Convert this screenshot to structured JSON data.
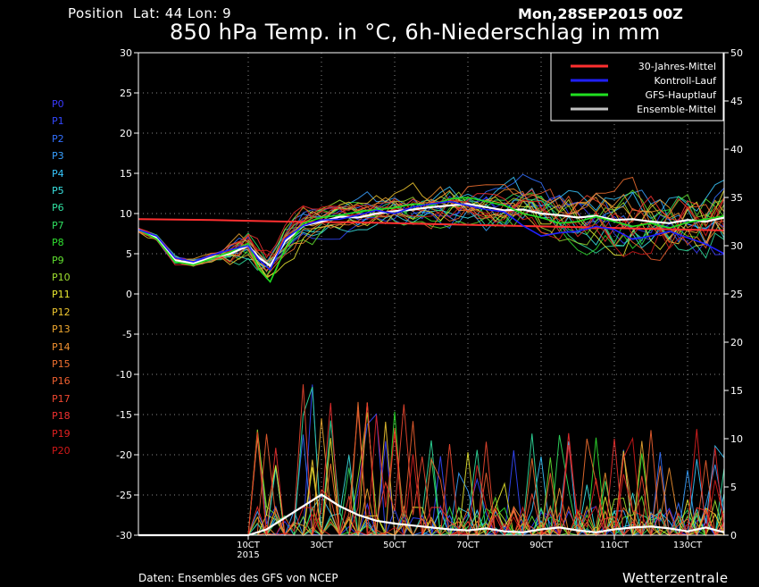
{
  "header": {
    "position": "Position  Lat: 44 Lon: 9",
    "run": "Mon,28SEP2015 00Z",
    "title": "850 hPa Temp. in °C, 6h-Niederschlag in mm"
  },
  "footer": {
    "source": "Daten: Ensembles des GFS von NCEP",
    "brand": "Wetterzentrale"
  },
  "members": [
    {
      "name": "P0",
      "color": "#3a3aff"
    },
    {
      "name": "P1",
      "color": "#3348ff"
    },
    {
      "name": "P2",
      "color": "#3270ff"
    },
    {
      "name": "P3",
      "color": "#38a0ff"
    },
    {
      "name": "P4",
      "color": "#38c8ff"
    },
    {
      "name": "P5",
      "color": "#38e0e0"
    },
    {
      "name": "P6",
      "color": "#30e0a0"
    },
    {
      "name": "P7",
      "color": "#30e060"
    },
    {
      "name": "P8",
      "color": "#30e030"
    },
    {
      "name": "P9",
      "color": "#60e030"
    },
    {
      "name": "P10",
      "color": "#a0e030"
    },
    {
      "name": "P11",
      "color": "#e8e830"
    },
    {
      "name": "P12",
      "color": "#f0c830"
    },
    {
      "name": "P13",
      "color": "#f0a830"
    },
    {
      "name": "P14",
      "color": "#f09030"
    },
    {
      "name": "P15",
      "color": "#f07030"
    },
    {
      "name": "P16",
      "color": "#f06030"
    },
    {
      "name": "P17",
      "color": "#f04830"
    },
    {
      "name": "P18",
      "color": "#f03030"
    },
    {
      "name": "P19",
      "color": "#e02020"
    },
    {
      "name": "P20",
      "color": "#d01818"
    }
  ],
  "chart_data": {
    "type": "line",
    "x_ticks": [
      {
        "label": "10CT",
        "sub": "2015",
        "day": 3.0
      },
      {
        "label": "30CT",
        "sub": "",
        "day": 5.0
      },
      {
        "label": "50CT",
        "sub": "",
        "day": 7.0
      },
      {
        "label": "70CT",
        "sub": "",
        "day": 9.0
      },
      {
        "label": "90CT",
        "sub": "",
        "day": 11.0
      },
      {
        "label": "110CT",
        "sub": "",
        "day": 13.0
      },
      {
        "label": "130CT",
        "sub": "",
        "day": 15.0
      }
    ],
    "xlim": [
      0,
      16
    ],
    "ylim_left": [
      -30,
      30
    ],
    "yticks_left": [
      -30,
      -25,
      -20,
      -15,
      -10,
      -5,
      0,
      5,
      10,
      15,
      20,
      25,
      30
    ],
    "ylim_right": [
      0,
      50
    ],
    "yticks_right": [
      0,
      5,
      10,
      15,
      20,
      25,
      30,
      35,
      40,
      45,
      50
    ],
    "grid": true,
    "legend_position": "top-right",
    "legend": [
      {
        "label": "30-Jahres-Mittel",
        "color": "#ff3030"
      },
      {
        "label": "Kontroll-Lauf",
        "color": "#2020ff"
      },
      {
        "label": "GFS-Hauptlauf",
        "color": "#20e020"
      },
      {
        "label": "Ensemble-Mittel",
        "color": "#c0c0c0"
      }
    ],
    "series": [
      {
        "name": "30-Jahres-Mittel",
        "axis": "left",
        "x": [
          0,
          2,
          4,
          6,
          8,
          10,
          12,
          14,
          16
        ],
        "y": [
          9.3,
          9.2,
          9.0,
          8.9,
          8.7,
          8.5,
          8.3,
          8.1,
          7.9
        ]
      },
      {
        "name": "Ensemble-Mittel",
        "axis": "left",
        "x": [
          0,
          0.5,
          1,
          1.5,
          2,
          2.5,
          3,
          3.3,
          3.6,
          4,
          4.5,
          5,
          5.5,
          6,
          6.5,
          7,
          7.5,
          8,
          8.5,
          9,
          9.5,
          10,
          10.5,
          11,
          11.5,
          12,
          12.5,
          13,
          13.5,
          14,
          14.5,
          15,
          15.5,
          16
        ],
        "y": [
          8,
          7,
          4.2,
          3.8,
          4.5,
          5,
          6,
          4.5,
          3.5,
          6.5,
          8.5,
          9,
          9.6,
          9.5,
          10,
          10.3,
          10.5,
          10.8,
          11,
          11.2,
          10.8,
          10.4,
          10.5,
          10,
          9.8,
          9.5,
          9.7,
          9.2,
          9.3,
          9,
          8.8,
          9.2,
          9,
          9.5
        ]
      },
      {
        "name": "GFS-Hauptlauf",
        "axis": "left",
        "x": [
          0,
          0.5,
          1,
          1.5,
          2,
          2.5,
          3,
          3.3,
          3.6,
          4,
          4.5,
          5,
          5.5,
          6,
          6.5,
          7,
          7.5,
          8,
          8.5,
          9,
          9.5,
          10,
          10.5,
          11,
          11.5,
          12,
          12.5,
          13,
          13.5,
          14,
          14.5,
          15,
          15.5,
          16
        ],
        "y": [
          8,
          6.8,
          4,
          3.6,
          4.4,
          5.2,
          6.3,
          3,
          1.5,
          5.5,
          8.8,
          9.5,
          9.8,
          10.2,
          10.5,
          10.7,
          11.2,
          11,
          11.8,
          12,
          11.5,
          11,
          10,
          9.5,
          8.8,
          9,
          9.6,
          9,
          8.4,
          8.8,
          8.2,
          8.9,
          9.3,
          9.7
        ]
      },
      {
        "name": "Kontroll-Lauf",
        "axis": "left",
        "x": [
          0,
          0.5,
          1,
          1.5,
          2,
          2.5,
          3,
          3.3,
          3.6,
          4,
          4.5,
          5,
          5.5,
          6,
          6.5,
          7,
          7.5,
          8,
          8.5,
          9,
          9.5,
          10,
          10.5,
          11,
          11.5,
          12,
          12.5,
          13,
          13.5,
          14,
          14.5,
          15,
          15.5,
          16
        ],
        "y": [
          8,
          7.2,
          4.5,
          4,
          4.8,
          5.5,
          6,
          4.2,
          3,
          6.8,
          8.5,
          9.2,
          9.3,
          9.8,
          10.4,
          10,
          10.8,
          11.2,
          11.5,
          11,
          10.5,
          10.2,
          8.5,
          7.2,
          7.6,
          7.8,
          8.4,
          8,
          6.8,
          7.2,
          7.8,
          7,
          6.2,
          5
        ]
      },
      {
        "name": "Ensemble-Mittel Niederschlag",
        "axis": "right",
        "x": [
          0,
          1,
          2,
          3,
          3.5,
          4,
          4.5,
          5,
          5.5,
          6,
          6.5,
          7,
          7.5,
          8,
          8.5,
          9,
          9.5,
          10,
          10.5,
          11,
          11.5,
          12,
          12.5,
          13,
          13.5,
          14,
          14.5,
          15,
          15.5,
          16
        ],
        "y": [
          0,
          0,
          0,
          0,
          0.6,
          1.8,
          3,
          4.2,
          3,
          2.1,
          1.5,
          1.2,
          1,
          0.8,
          0.6,
          0.5,
          0.7,
          0.4,
          0.3,
          0.6,
          0.8,
          0.5,
          0.3,
          0.6,
          0.8,
          0.9,
          0.7,
          0.4,
          0.8,
          0.3
        ]
      }
    ]
  }
}
